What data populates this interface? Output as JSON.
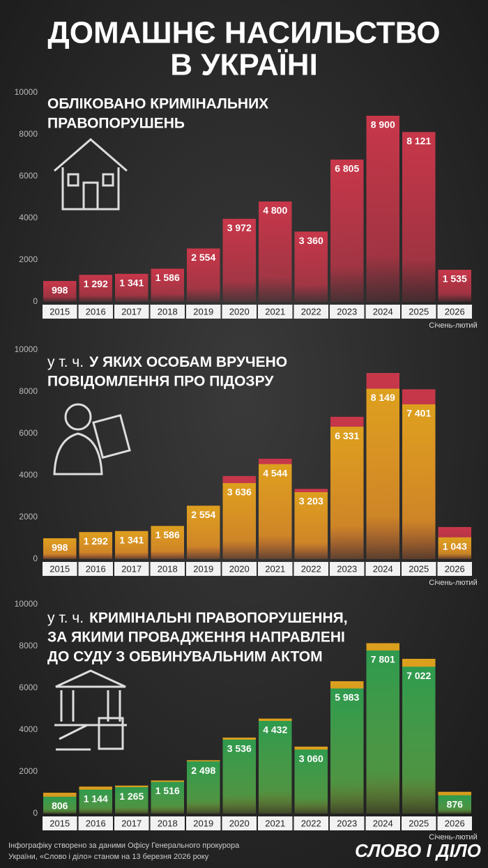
{
  "header": {
    "title": [
      "ДОМАШНЄ НАСИЛЬСТВО",
      "В УКРАЇНІ"
    ]
  },
  "chart_data": [
    {
      "type": "bar",
      "title": [
        "ОБЛІКОВАНО КРИМІНАЛЬНИХ",
        "ПРАВОПОРУШЕНЬ"
      ],
      "categories": [
        "2015",
        "2016",
        "2017",
        "2018",
        "2019",
        "2020",
        "2021",
        "2022",
        "2023",
        "2024",
        "2025",
        "2026"
      ],
      "values": [
        998,
        1292,
        1341,
        1586,
        2554,
        3972,
        4800,
        3360,
        6805,
        8900,
        8121,
        1535
      ],
      "value_labels": [
        "998",
        "1 292",
        "1 341",
        "1 586",
        "2 554",
        "3 972",
        "4 800",
        "3 360",
        "6 805",
        "8 900",
        "8 121",
        "1 535"
      ],
      "color": "#c8374a",
      "ylim": [
        0,
        10000
      ],
      "yticks": [
        0,
        2000,
        4000,
        6000,
        8000,
        10000
      ],
      "note": "Січень-лютий"
    },
    {
      "type": "bar",
      "title_prefix": "у т. ч.",
      "title": [
        "У ЯКИХ ОСОБАМ ВРУЧЕНО",
        "ПОВІДОМЛЕННЯ ПРО ПІДОЗРУ"
      ],
      "categories": [
        "2015",
        "2016",
        "2017",
        "2018",
        "2019",
        "2020",
        "2021",
        "2022",
        "2023",
        "2024",
        "2025",
        "2026"
      ],
      "values": [
        998,
        1292,
        1341,
        1586,
        2554,
        3636,
        4544,
        3203,
        6331,
        8149,
        7401,
        1043
      ],
      "value_labels": [
        "998",
        "1 292",
        "1 341",
        "1 586",
        "2 554",
        "3 636",
        "4 544",
        "3 203",
        "6 331",
        "8 149",
        "7 401",
        "1 043"
      ],
      "color": "#dda01e",
      "ylim": [
        0,
        10000
      ],
      "yticks": [
        0,
        2000,
        4000,
        6000,
        8000,
        10000
      ],
      "note": "Січень-лютий"
    },
    {
      "type": "bar",
      "title_prefix": "у т. ч.",
      "title": [
        "КРИМІНАЛЬНІ ПРАВОПОРУШЕННЯ,",
        "ЗА ЯКИМИ ПРОВАДЖЕННЯ НАПРАВЛЕНІ",
        "ДО СУДУ З ОБВИНУВАЛЬНИМ АКТОМ"
      ],
      "categories": [
        "2015",
        "2016",
        "2017",
        "2018",
        "2019",
        "2020",
        "2021",
        "2022",
        "2023",
        "2024",
        "2025",
        "2026"
      ],
      "values": [
        806,
        1144,
        1265,
        1516,
        2498,
        3536,
        4432,
        3060,
        5983,
        7801,
        7022,
        876
      ],
      "value_labels": [
        "806",
        "1 144",
        "1 265",
        "1 516",
        "2 498",
        "3 536",
        "4 432",
        "3 060",
        "5 983",
        "7 801",
        "7 022",
        "876"
      ],
      "color": "#2e9a4e",
      "ylim": [
        0,
        10000
      ],
      "yticks": [
        0,
        2000,
        4000,
        6000,
        8000,
        10000
      ],
      "note": "Січень-лютий"
    }
  ],
  "footer": {
    "source": [
      "Інфографіку створено за даними Офісу Генерального прокурора",
      "України, «Слово і діло» станом на 13 березня 2026 року"
    ],
    "logo": "СЛОВО І ДІЛО"
  }
}
